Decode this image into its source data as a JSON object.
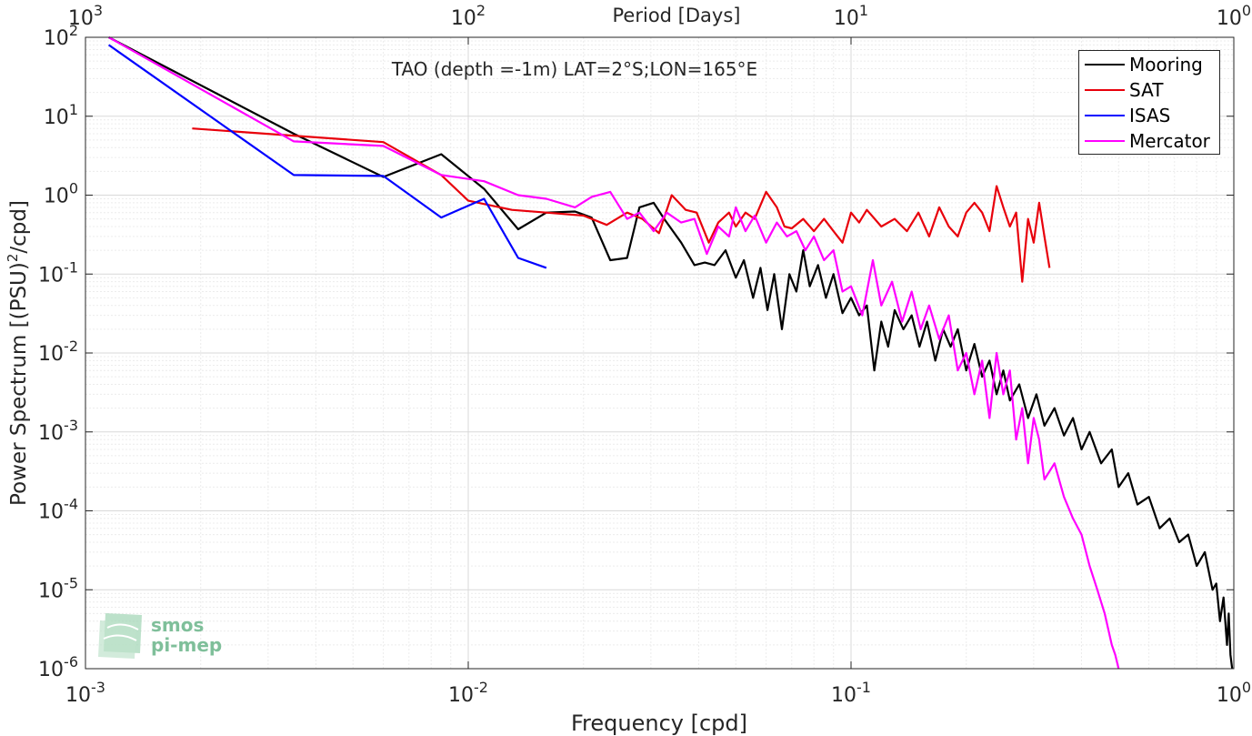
{
  "chart_data": {
    "type": "line",
    "title": "TAO (depth =-1m) LAT=2°S;LON=165°E",
    "xlabel": "Frequency [cpd]",
    "ylabel_main": "Power Spectrum [(PSU)",
    "ylabel_sup": "2",
    "ylabel_tail": "/cpd]",
    "top_axis_label": "Period [Days]",
    "x_scale": "log",
    "y_scale": "log",
    "xlim": [
      0.001,
      1
    ],
    "ylim": [
      1e-06,
      100
    ],
    "grid": true,
    "legend_position": "top-right",
    "x_ticks": [
      {
        "value": 0.001,
        "base": "10",
        "exp": "-3"
      },
      {
        "value": 0.01,
        "base": "10",
        "exp": "-2"
      },
      {
        "value": 0.1,
        "base": "10",
        "exp": "-1"
      },
      {
        "value": 1,
        "base": "10",
        "exp": "0"
      }
    ],
    "top_ticks": [
      {
        "value": 0.001,
        "base": "10",
        "exp": "3"
      },
      {
        "value": 0.01,
        "base": "10",
        "exp": "2"
      },
      {
        "value": 0.1,
        "base": "10",
        "exp": "1"
      },
      {
        "value": 1,
        "base": "10",
        "exp": "0"
      }
    ],
    "y_ticks": [
      {
        "value": 100,
        "base": "10",
        "exp": "2"
      },
      {
        "value": 10,
        "base": "10",
        "exp": "1"
      },
      {
        "value": 1,
        "base": "10",
        "exp": "0"
      },
      {
        "value": 0.1,
        "base": "10",
        "exp": "-1"
      },
      {
        "value": 0.01,
        "base": "10",
        "exp": "-2"
      },
      {
        "value": 0.001,
        "base": "10",
        "exp": "-3"
      },
      {
        "value": 0.0001,
        "base": "10",
        "exp": "-4"
      },
      {
        "value": 1e-05,
        "base": "10",
        "exp": "-5"
      },
      {
        "value": 1e-06,
        "base": "10",
        "exp": "-6"
      }
    ],
    "series": [
      {
        "name": "Mooring",
        "color": "#000000",
        "x": [
          0.00115,
          0.0035,
          0.006,
          0.0085,
          0.011,
          0.0135,
          0.016,
          0.019,
          0.021,
          0.0235,
          0.026,
          0.028,
          0.0305,
          0.0325,
          0.036,
          0.039,
          0.0415,
          0.044,
          0.047,
          0.05,
          0.0525,
          0.0555,
          0.058,
          0.0605,
          0.063,
          0.066,
          0.069,
          0.072,
          0.075,
          0.078,
          0.082,
          0.086,
          0.09,
          0.095,
          0.1,
          0.105,
          0.11,
          0.115,
          0.12,
          0.125,
          0.13,
          0.137,
          0.144,
          0.151,
          0.158,
          0.166,
          0.174,
          0.182,
          0.19,
          0.2,
          0.21,
          0.22,
          0.23,
          0.24,
          0.25,
          0.26,
          0.275,
          0.29,
          0.305,
          0.32,
          0.34,
          0.36,
          0.38,
          0.4,
          0.42,
          0.45,
          0.48,
          0.5,
          0.53,
          0.56,
          0.6,
          0.64,
          0.68,
          0.72,
          0.76,
          0.8,
          0.84,
          0.88,
          0.9,
          0.92,
          0.94,
          0.96,
          0.97,
          0.98,
          0.99
        ],
        "y": [
          100,
          6,
          1.7,
          3.3,
          1.2,
          0.37,
          0.6,
          0.62,
          0.52,
          0.15,
          0.16,
          0.7,
          0.8,
          0.5,
          0.25,
          0.13,
          0.14,
          0.13,
          0.2,
          0.09,
          0.15,
          0.05,
          0.12,
          0.035,
          0.1,
          0.02,
          0.1,
          0.06,
          0.2,
          0.07,
          0.13,
          0.05,
          0.1,
          0.032,
          0.05,
          0.03,
          0.04,
          0.006,
          0.025,
          0.012,
          0.035,
          0.02,
          0.03,
          0.012,
          0.025,
          0.008,
          0.02,
          0.012,
          0.02,
          0.006,
          0.013,
          0.005,
          0.008,
          0.003,
          0.006,
          0.0025,
          0.004,
          0.0015,
          0.003,
          0.0012,
          0.002,
          0.0009,
          0.0015,
          0.0006,
          0.001,
          0.0004,
          0.0006,
          0.0002,
          0.0003,
          0.00012,
          0.00015,
          6e-05,
          8e-05,
          4e-05,
          5e-05,
          2e-05,
          3e-05,
          1e-05,
          1.2e-05,
          4e-06,
          8e-06,
          2e-06,
          5e-06,
          1.5e-06,
          1e-06
        ]
      },
      {
        "name": "SAT",
        "color": "#e8000b",
        "x": [
          0.0019,
          0.006,
          0.0085,
          0.01,
          0.013,
          0.016,
          0.02,
          0.023,
          0.026,
          0.0285,
          0.0315,
          0.034,
          0.037,
          0.0395,
          0.0425,
          0.045,
          0.048,
          0.05,
          0.053,
          0.056,
          0.06,
          0.064,
          0.067,
          0.07,
          0.075,
          0.08,
          0.085,
          0.09,
          0.095,
          0.1,
          0.105,
          0.11,
          0.12,
          0.13,
          0.14,
          0.15,
          0.16,
          0.17,
          0.18,
          0.19,
          0.2,
          0.21,
          0.22,
          0.23,
          0.24,
          0.25,
          0.26,
          0.27,
          0.28,
          0.29,
          0.3,
          0.31,
          0.32,
          0.33
        ],
        "y": [
          7,
          4.7,
          1.8,
          0.85,
          0.65,
          0.6,
          0.55,
          0.42,
          0.6,
          0.5,
          0.33,
          1.0,
          0.65,
          0.6,
          0.25,
          0.45,
          0.6,
          0.4,
          0.6,
          0.5,
          1.1,
          0.7,
          0.4,
          0.38,
          0.5,
          0.35,
          0.5,
          0.35,
          0.25,
          0.6,
          0.45,
          0.65,
          0.4,
          0.5,
          0.35,
          0.6,
          0.3,
          0.7,
          0.4,
          0.3,
          0.6,
          0.8,
          0.6,
          0.35,
          1.3,
          0.7,
          0.4,
          0.6,
          0.08,
          0.5,
          0.25,
          0.8,
          0.3,
          0.12
        ]
      },
      {
        "name": "ISAS",
        "color": "#0000ff",
        "x": [
          0.00115,
          0.0035,
          0.006,
          0.0085,
          0.011,
          0.0135,
          0.016
        ],
        "y": [
          80,
          1.8,
          1.75,
          0.52,
          0.9,
          0.16,
          0.12
        ]
      },
      {
        "name": "Mercator",
        "color": "#ff00ff",
        "x": [
          0.00115,
          0.0035,
          0.006,
          0.0085,
          0.011,
          0.0135,
          0.016,
          0.019,
          0.021,
          0.0235,
          0.026,
          0.028,
          0.0305,
          0.033,
          0.036,
          0.039,
          0.042,
          0.045,
          0.048,
          0.05,
          0.053,
          0.056,
          0.06,
          0.064,
          0.068,
          0.072,
          0.076,
          0.08,
          0.085,
          0.09,
          0.095,
          0.1,
          0.107,
          0.114,
          0.12,
          0.128,
          0.136,
          0.144,
          0.152,
          0.16,
          0.17,
          0.18,
          0.19,
          0.2,
          0.21,
          0.22,
          0.23,
          0.24,
          0.25,
          0.26,
          0.27,
          0.28,
          0.29,
          0.3,
          0.31,
          0.32,
          0.34,
          0.36,
          0.38,
          0.4,
          0.42,
          0.44,
          0.46,
          0.48,
          0.49,
          0.5
        ],
        "y": [
          100,
          4.8,
          4.2,
          1.8,
          1.5,
          1.0,
          0.9,
          0.7,
          0.95,
          1.1,
          0.5,
          0.6,
          0.35,
          0.6,
          0.45,
          0.5,
          0.18,
          0.4,
          0.3,
          0.7,
          0.35,
          0.55,
          0.25,
          0.45,
          0.3,
          0.35,
          0.2,
          0.3,
          0.15,
          0.2,
          0.06,
          0.07,
          0.03,
          0.15,
          0.04,
          0.08,
          0.025,
          0.06,
          0.02,
          0.04,
          0.015,
          0.03,
          0.006,
          0.01,
          0.003,
          0.008,
          0.0015,
          0.01,
          0.003,
          0.006,
          0.0008,
          0.002,
          0.0004,
          0.0015,
          0.0008,
          0.00025,
          0.0004,
          0.00015,
          8e-05,
          5e-05,
          2e-05,
          1e-05,
          5e-06,
          2e-06,
          1.5e-06,
          1e-06
        ]
      }
    ]
  },
  "watermark": {
    "line1": "smos",
    "line2": "pi-mep"
  }
}
